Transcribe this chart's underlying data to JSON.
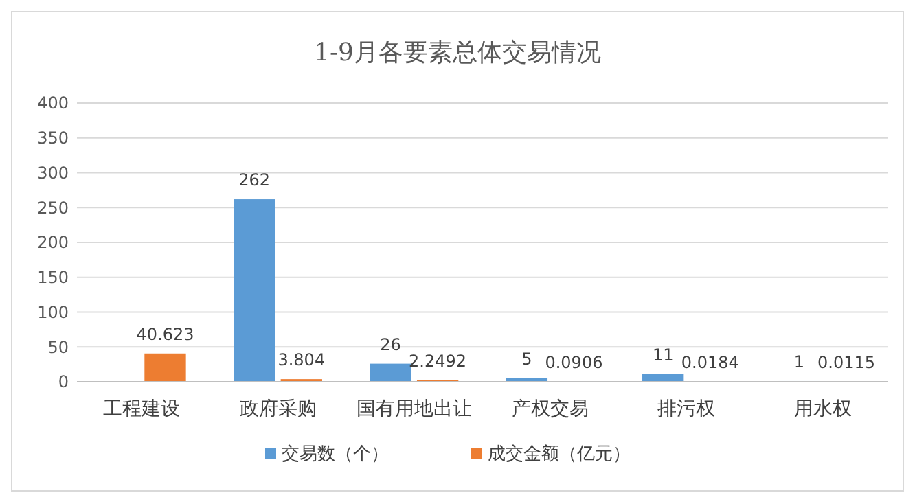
{
  "chart_data": {
    "type": "bar",
    "title": "1-9月各要素总体交易情况",
    "categories": [
      "工程建设",
      "政府采购",
      "国有用地出让",
      "产权交易",
      "排污权",
      "用水权"
    ],
    "series": [
      {
        "name": "交易数（个）",
        "color": "#5b9bd5",
        "values": [
          null,
          262,
          26,
          5,
          11,
          1
        ]
      },
      {
        "name": "成交金额（亿元）",
        "color": "#ed7d31",
        "values": [
          40.623,
          3.804,
          2.2492,
          0.0906,
          0.0184,
          0.0115
        ]
      }
    ],
    "ylim": [
      0,
      400
    ],
    "yticks": [
      0,
      50,
      100,
      150,
      200,
      250,
      300,
      350,
      400
    ],
    "grid": "y",
    "legend": "bottom",
    "data_labels": true
  }
}
